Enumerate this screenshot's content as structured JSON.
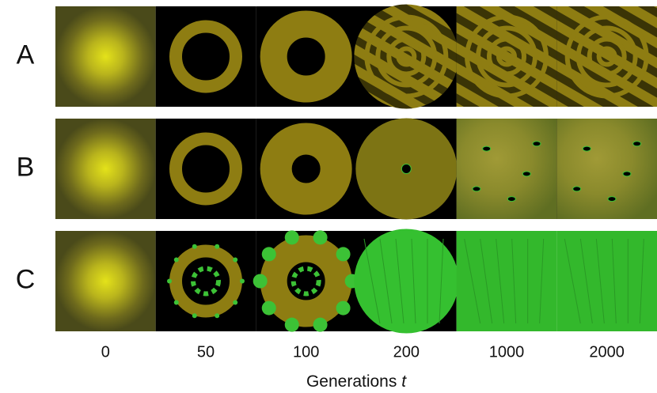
{
  "rows": [
    "A",
    "B",
    "C"
  ],
  "columns": [
    "0",
    "50",
    "100",
    "200",
    "1000",
    "2000"
  ],
  "x_label": {
    "text": "Generations",
    "variable": "t"
  }
}
